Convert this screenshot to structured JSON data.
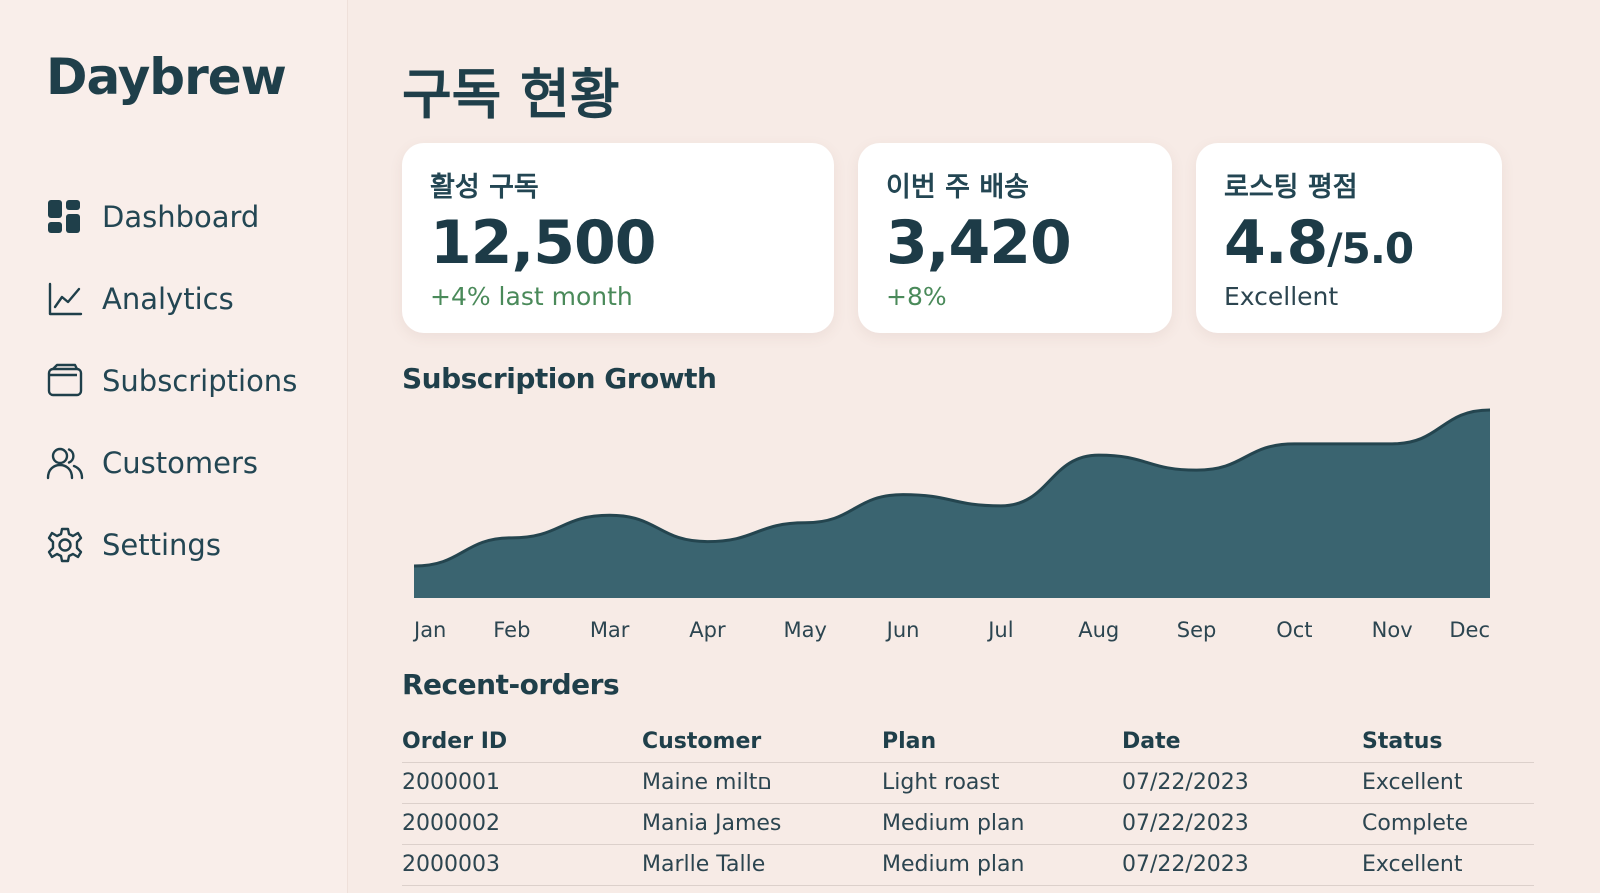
{
  "app": {
    "brand": "Daybrew"
  },
  "sidebar": {
    "items": [
      {
        "label": "Dashboard",
        "icon": "dashboard-icon"
      },
      {
        "label": "Analytics",
        "icon": "analytics-icon"
      },
      {
        "label": "Subscriptions",
        "icon": "wallet-icon"
      },
      {
        "label": "Customers",
        "icon": "users-icon"
      },
      {
        "label": "Settings",
        "icon": "gear-icon"
      }
    ]
  },
  "page": {
    "title": "구독 현황"
  },
  "cards": [
    {
      "label": "활성 구독",
      "value": "12,500",
      "suffix": "",
      "sub": "+4% last month"
    },
    {
      "label": "이번 주 배송",
      "value": "3,420",
      "suffix": "",
      "sub": "+8%"
    },
    {
      "label": "로스팅 평점",
      "value": "4.8",
      "suffix": "/5.0",
      "sub": "Excellent"
    }
  ],
  "chart_title": "Subscription Growth",
  "chart_data": {
    "type": "area",
    "categories": [
      "Jan",
      "Feb",
      "Mar",
      "Apr",
      "May",
      "Jun",
      "Jul",
      "Aug",
      "Sep",
      "Oct",
      "Nov",
      "Dec"
    ],
    "values": [
      17,
      32,
      44,
      30,
      40,
      55,
      49,
      76,
      68,
      82,
      82,
      100
    ],
    "title": "",
    "xlabel": "",
    "ylabel": "",
    "ylim": [
      0,
      100
    ],
    "grid": false,
    "color": "#3a6470"
  },
  "orders": {
    "title": "Recent-orders",
    "columns": [
      "Order ID",
      "Customer",
      "Plan",
      "Date",
      "Status"
    ],
    "rows": [
      [
        "2000001",
        "Maine miltם",
        "Light roast",
        "07/22/2023",
        "Excellent"
      ],
      [
        "2000002",
        "Mania James",
        "Medium plan",
        "07/22/2023",
        "Complete"
      ],
      [
        "2000003",
        "Marlle Talle",
        "Medium plan",
        "07/22/2023",
        "Excellent"
      ]
    ]
  },
  "colors": {
    "accent": "#2f5d6a",
    "background": "#f7ebe6",
    "positive": "#4a8a5a"
  }
}
